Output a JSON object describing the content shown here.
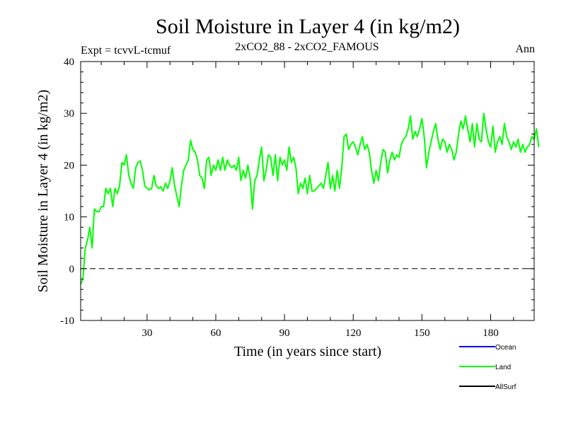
{
  "chart_data": {
    "type": "line",
    "title": "Soil Moisture in Layer 4 (in kg/m2)",
    "subtitle": "2xCO2_88 - 2xCO2_FAMOUS",
    "expt_label": "Expt = tcvvL-tcmuf",
    "period_label": "Ann",
    "xlabel": "Time (in years since start)",
    "ylabel": "Soil Moisture in Layer 4 (in kg/m2)",
    "xlim": [
      1,
      199
    ],
    "ylim": [
      -10,
      40
    ],
    "x_ticks": [
      30,
      60,
      90,
      120,
      150,
      180
    ],
    "y_ticks": [
      -10,
      0,
      10,
      20,
      30,
      40
    ],
    "zero_line": true,
    "grid": false,
    "legend_position": "bottom-right",
    "legend": [
      {
        "name": "Ocean",
        "color": "#0000ff"
      },
      {
        "name": "Land",
        "color": "#00ff00"
      },
      {
        "name": "AllSurf",
        "color": "#000000"
      }
    ],
    "series": [
      {
        "name": "Land",
        "color": "#00ff00",
        "x_start": 1,
        "x_step": 1,
        "values": [
          -3.0,
          -2.0,
          4.0,
          5.5,
          8.0,
          4.0,
          11.5,
          11.0,
          11.0,
          12.0,
          12.0,
          15.5,
          14.5,
          15.5,
          12.0,
          15.5,
          14.5,
          16.0,
          20.5,
          20.0,
          22.0,
          18.0,
          16.5,
          15.5,
          19.5,
          20.5,
          20.8,
          19.0,
          16.0,
          15.5,
          15.2,
          15.5,
          18.0,
          16.0,
          15.5,
          15.8,
          15.0,
          16.5,
          15.5,
          17.0,
          19.5,
          16.0,
          14.0,
          12.0,
          16.0,
          19.0,
          20.0,
          21.0,
          24.8,
          23.0,
          22.5,
          21.0,
          18.0,
          17.5,
          15.5,
          21.0,
          21.5,
          18.0,
          20.0,
          19.0,
          21.0,
          19.0,
          21.5,
          19.0,
          21.0,
          20.0,
          19.5,
          20.0,
          19.0,
          21.5,
          17.0,
          19.0,
          17.5,
          20.0,
          17.5,
          11.5,
          17.0,
          18.0,
          21.0,
          23.5,
          17.0,
          19.0,
          22.0,
          21.5,
          18.0,
          22.0,
          17.0,
          21.5,
          20.0,
          21.0,
          19.0,
          23.5,
          20.5,
          21.5,
          19.5,
          14.5,
          16.5,
          15.5,
          17.5,
          14.5,
          18.0,
          15.0,
          15.0,
          15.5,
          16.0,
          16.5,
          15.5,
          18.0,
          20.5,
          15.5,
          18.0,
          15.0,
          19.0,
          15.5,
          19.5,
          25.5,
          26.0,
          23.0,
          24.0,
          24.5,
          23.5,
          22.0,
          24.0,
          25.5,
          23.0,
          24.0,
          22.5,
          19.0,
          16.5,
          19.0,
          17.0,
          20.5,
          23.0,
          22.5,
          18.5,
          21.0,
          22.5,
          21.0,
          22.0,
          21.5,
          24.0,
          25.0,
          25.5,
          27.0,
          29.5,
          25.0,
          26.5,
          25.5,
          27.0,
          29.0,
          25.5,
          19.5,
          22.5,
          24.5,
          26.5,
          28.0,
          25.0,
          23.0,
          25.0,
          24.5,
          22.5,
          24.0,
          23.0,
          21.0,
          22.5,
          26.0,
          28.5,
          27.0,
          29.5,
          27.0,
          24.5,
          28.0,
          23.5,
          28.0,
          25.0,
          24.5,
          30.0,
          27.0,
          24.5,
          23.5,
          27.5,
          22.5,
          24.5,
          25.5,
          24.0,
          28.0,
          25.5,
          24.5,
          23.0,
          24.5,
          23.5,
          25.0,
          22.5,
          24.0,
          22.5,
          23.5,
          24.0,
          25.5,
          25.0,
          27.0,
          23.5
        ]
      }
    ]
  }
}
